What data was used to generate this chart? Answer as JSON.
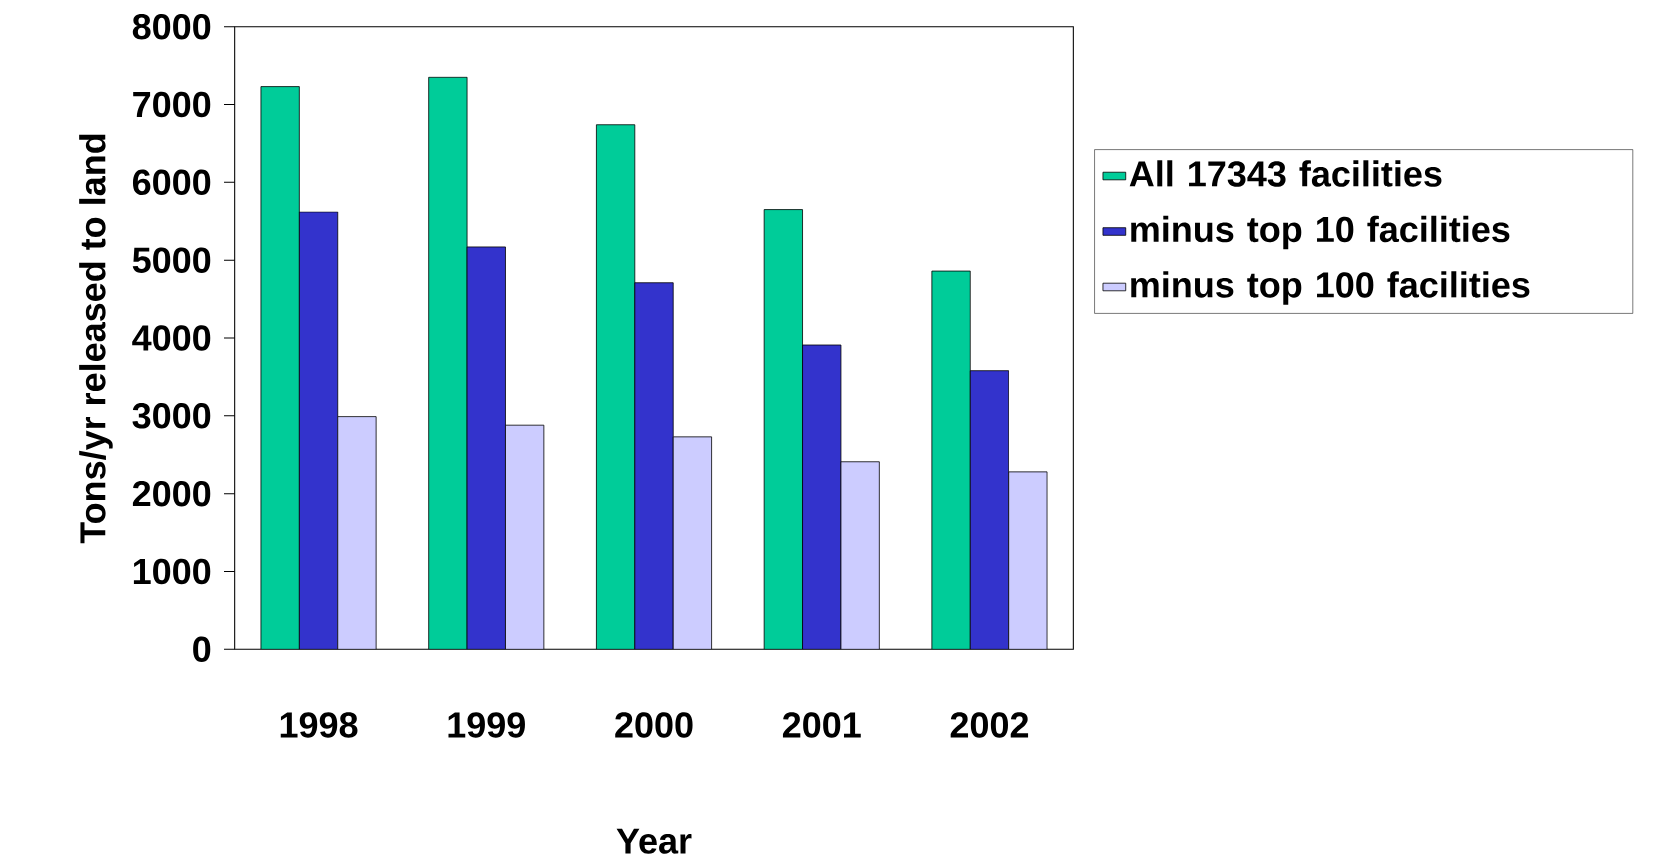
{
  "chart_data": {
    "type": "bar",
    "xlabel": "Year",
    "ylabel": "Tons/yr released to land",
    "categories": [
      "1998",
      "1999",
      "2000",
      "2001",
      "2002"
    ],
    "series": [
      {
        "name": "All 17343 facilities",
        "color": "#00cc99",
        "values": [
          7230,
          7350,
          6740,
          5650,
          4860
        ]
      },
      {
        "name": "minus top 10 facilities",
        "color": "#3333cc",
        "values": [
          5620,
          5170,
          4710,
          3910,
          3580
        ]
      },
      {
        "name": "minus top 100 facilities",
        "color": "#ccccff",
        "values": [
          2990,
          2880,
          2730,
          2410,
          2280
        ]
      }
    ],
    "ylim": [
      0,
      8000
    ],
    "yticks": [
      0,
      1000,
      2000,
      3000,
      4000,
      5000,
      6000,
      7000,
      8000
    ],
    "legend": "right"
  }
}
